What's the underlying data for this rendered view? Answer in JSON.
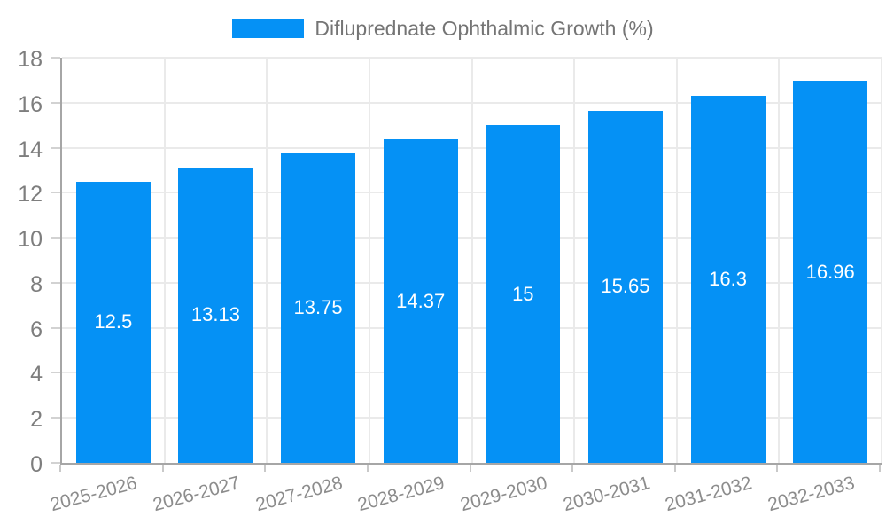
{
  "chart_data": {
    "type": "bar",
    "title": "Difluprednate Ophthalmic Growth (%)",
    "series_name": "Difluprednate Ophthalmic Growth (%)",
    "categories": [
      "2025-2026",
      "2026-2027",
      "2027-2028",
      "2028-2029",
      "2029-2030",
      "2030-2031",
      "2031-2032",
      "2032-2033"
    ],
    "values": [
      12.5,
      13.13,
      13.75,
      14.37,
      15,
      15.65,
      16.3,
      16.96
    ],
    "value_labels": [
      "12.5",
      "13.13",
      "13.75",
      "14.37",
      "15",
      "15.65",
      "16.3",
      "16.96"
    ],
    "xlabel": "",
    "ylabel": "",
    "ylim": [
      0,
      18
    ],
    "ytick_step": 2,
    "ytick_labels": [
      "0",
      "2",
      "4",
      "6",
      "8",
      "10",
      "12",
      "14",
      "16",
      "18"
    ],
    "grid": true,
    "legend_position": "top",
    "bar_color": "#0591f5",
    "value_label_color": "#ffffff",
    "grid_color": "#eaeaea",
    "axis_line_color": "#a6a6a6",
    "tick_label_color": "#7e7e7e"
  }
}
